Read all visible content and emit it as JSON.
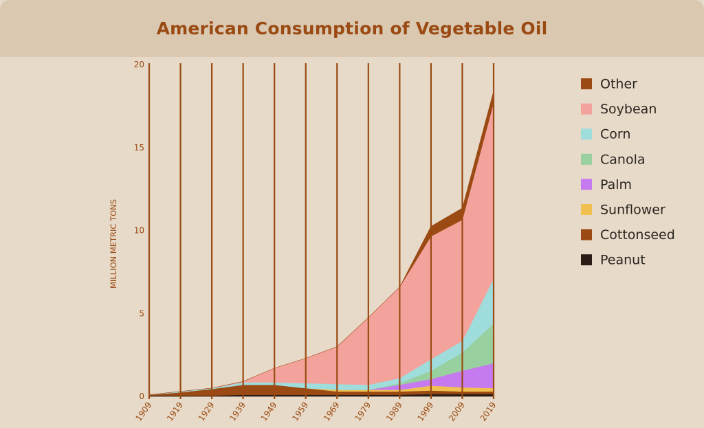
{
  "chart_data": {
    "type": "area",
    "stacked": true,
    "title": "American Consumption of Vegetable Oil",
    "ylabel": "MILLION METRIC TONS",
    "xlabel": "",
    "x": [
      "1909",
      "1919",
      "1929",
      "1939",
      "1949",
      "1959",
      "1969",
      "1979",
      "1989",
      "1999",
      "2009",
      "2019"
    ],
    "ylim": [
      0,
      20
    ],
    "yticks": [
      0,
      5,
      10,
      15,
      20
    ],
    "vertical_gridlines": true,
    "legend_position": "right",
    "series": [
      {
        "name": "Peanut",
        "color": "#2b1d16",
        "values": [
          0.05,
          0.05,
          0.05,
          0.1,
          0.1,
          0.1,
          0.1,
          0.1,
          0.1,
          0.15,
          0.15,
          0.15
        ]
      },
      {
        "name": "Cottonseed",
        "color": "#9a4a12",
        "values": [
          0.05,
          0.2,
          0.4,
          0.6,
          0.6,
          0.4,
          0.2,
          0.2,
          0.2,
          0.2,
          0.15,
          0.15
        ]
      },
      {
        "name": "Sunflower",
        "color": "#f0c050",
        "values": [
          0,
          0,
          0,
          0,
          0,
          0,
          0.1,
          0.1,
          0.1,
          0.3,
          0.25,
          0.2
        ]
      },
      {
        "name": "Palm",
        "color": "#c67af0",
        "values": [
          0,
          0,
          0,
          0,
          0,
          0,
          0,
          0,
          0.3,
          0.4,
          1.0,
          1.5
        ]
      },
      {
        "name": "Canola",
        "color": "#99d0a0",
        "values": [
          0,
          0,
          0,
          0,
          0,
          0,
          0,
          0,
          0.1,
          0.5,
          1.1,
          2.4
        ]
      },
      {
        "name": "Corn",
        "color": "#9fdcdc",
        "values": [
          0,
          0.05,
          0.05,
          0.15,
          0.15,
          0.3,
          0.35,
          0.3,
          0.3,
          0.7,
          0.7,
          2.7
        ]
      },
      {
        "name": "Soybean",
        "color": "#f4a39c",
        "values": [
          0,
          0,
          0,
          0.05,
          0.85,
          1.5,
          2.25,
          4.05,
          5.5,
          7.4,
          7.3,
          10.6
        ]
      },
      {
        "name": "Other",
        "color": "#9a4a12",
        "values": [
          0,
          0,
          0,
          0,
          0,
          0,
          0,
          0,
          0,
          0.6,
          0.7,
          0.7
        ]
      }
    ],
    "legend_order": [
      "Other",
      "Soybean",
      "Corn",
      "Canola",
      "Palm",
      "Sunflower",
      "Cottonseed",
      "Peanut"
    ]
  }
}
